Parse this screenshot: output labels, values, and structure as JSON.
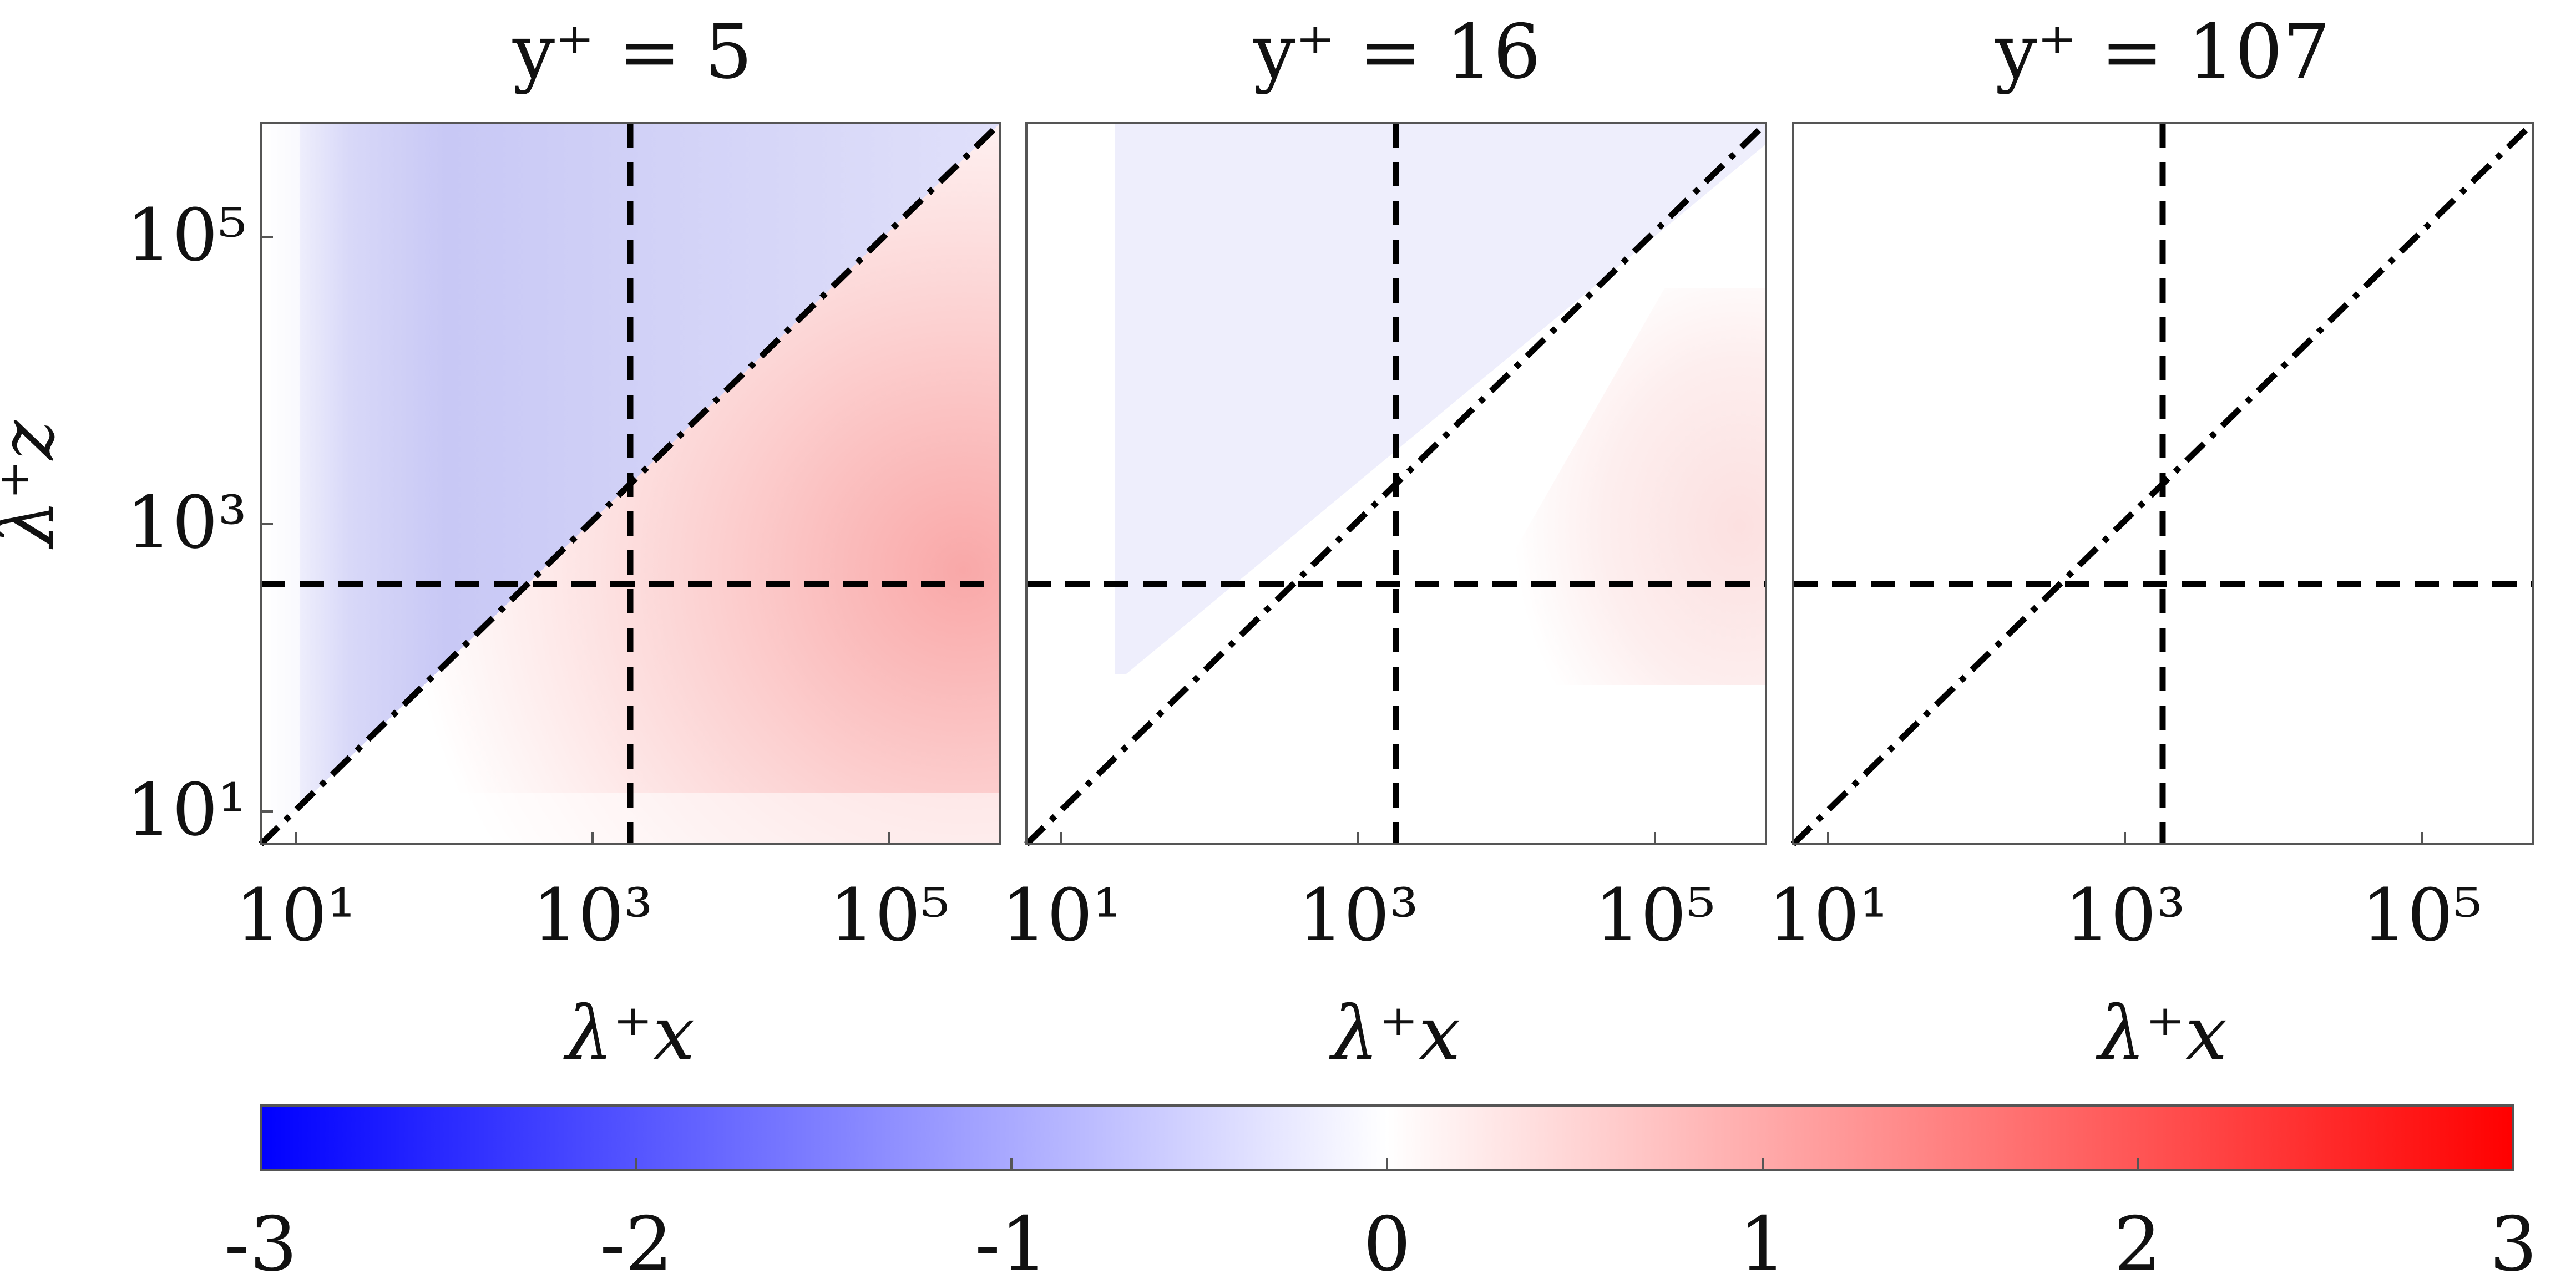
{
  "chart_data": [
    {
      "type": "heatmap",
      "title": "y⁺ = 5",
      "xlabel": "λ⁺x",
      "ylabel": "λ⁺z",
      "x_scale": "log",
      "y_scale": "log",
      "xlim": [
        5,
        630000
      ],
      "ylim": [
        5,
        630000
      ],
      "x_ticks": [
        "10¹",
        "10³",
        "10⁵"
      ],
      "y_ticks": [
        "10¹",
        "10³",
        "10⁵"
      ],
      "reference_lines": {
        "vertical_dashed_at_x": 1800,
        "horizontal_dashed_at_y": 400,
        "diagonal_dashdot": "y = x"
      },
      "regions": [
        {
          "description": "above diagonal",
          "value": -0.6
        },
        {
          "description": "below diagonal",
          "value": 0.5
        }
      ]
    },
    {
      "type": "heatmap",
      "title": "y⁺ = 16",
      "xlabel": "λ⁺x",
      "ylabel": "",
      "x_scale": "log",
      "y_scale": "log",
      "xlim": [
        5,
        630000
      ],
      "ylim": [
        5,
        630000
      ],
      "x_ticks": [
        "10¹",
        "10³",
        "10⁵"
      ],
      "y_ticks": [],
      "reference_lines": {
        "vertical_dashed_at_x": 1800,
        "horizontal_dashed_at_y": 400,
        "diagonal_dashdot": "y = x"
      },
      "regions": [
        {
          "description": "above diagonal",
          "value": -0.15
        },
        {
          "description": "below diagonal",
          "value": 0.2
        }
      ]
    },
    {
      "type": "heatmap",
      "title": "y⁺ = 107",
      "xlabel": "λ⁺x",
      "ylabel": "",
      "x_scale": "log",
      "y_scale": "log",
      "xlim": [
        5,
        630000
      ],
      "ylim": [
        5,
        630000
      ],
      "x_ticks": [
        "10¹",
        "10³",
        "10⁵"
      ],
      "y_ticks": [],
      "reference_lines": {
        "vertical_dashed_at_x": 1800,
        "horizontal_dashed_at_y": 400,
        "diagonal_dashdot": "y = x"
      },
      "regions": [
        {
          "description": "entire panel",
          "value": 0
        }
      ]
    }
  ],
  "colorbar": {
    "range": [
      -3,
      3
    ],
    "ticks": [
      "-3",
      "-2",
      "-1",
      "0",
      "1",
      "2",
      "3"
    ],
    "colors": {
      "min": "#0000ff",
      "mid": "#ffffff",
      "max": "#ff0000"
    }
  }
}
